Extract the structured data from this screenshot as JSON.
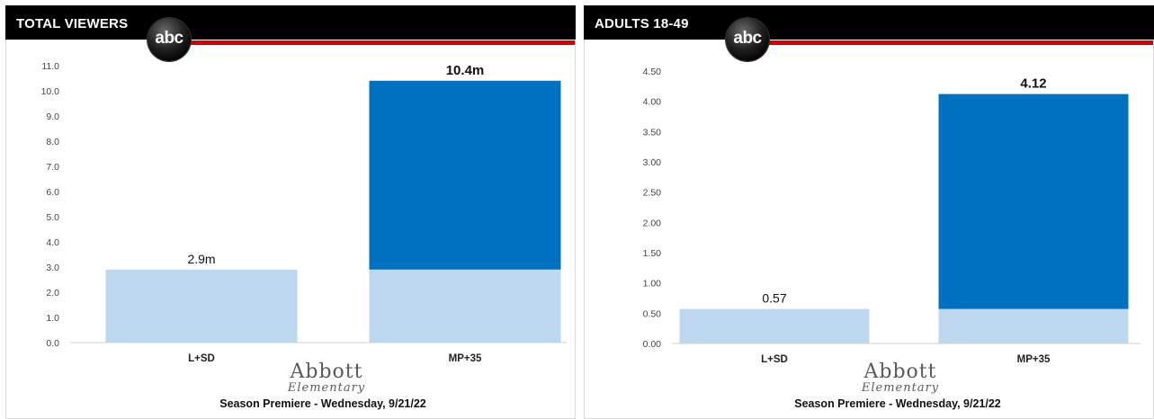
{
  "colors": {
    "light_bar": "#bdd7ee",
    "dark_bar": "#0070c0",
    "header": "#000000",
    "stripe": "#d40000"
  },
  "panels": [
    {
      "header_title": "TOTAL VIEWERS",
      "logo_text": "abc",
      "show_name_line1": "Abbott",
      "show_name_line2": "Elementary",
      "footer": "Season Premiere - Wednesday, 9/21/22"
    },
    {
      "header_title": "ADULTS 18-49",
      "logo_text": "abc",
      "show_name_line1": "Abbott",
      "show_name_line2": "Elementary",
      "footer": "Season Premiere - Wednesday, 9/21/22"
    }
  ],
  "chart_data": [
    {
      "type": "bar",
      "title": "TOTAL VIEWERS",
      "categories": [
        "L+SD",
        "MP+35"
      ],
      "series": [
        {
          "values": [
            2.9,
            2.9
          ]
        },
        {
          "values": [
            0,
            7.5
          ]
        }
      ],
      "totals": [
        2.9,
        10.4
      ],
      "data_labels": [
        "2.9m",
        "10.4m"
      ],
      "ylim": [
        0,
        11
      ],
      "yticks": [
        "0.0",
        "1.0",
        "2.0",
        "3.0",
        "4.0",
        "5.0",
        "6.0",
        "7.0",
        "8.0",
        "9.0",
        "10.0",
        "11.0"
      ],
      "grid": false,
      "legend": "none"
    },
    {
      "type": "bar",
      "title": "ADULTS 18-49",
      "categories": [
        "L+SD",
        "MP+35"
      ],
      "series": [
        {
          "values": [
            0.57,
            0.57
          ]
        },
        {
          "values": [
            0,
            3.55
          ]
        }
      ],
      "totals": [
        0.57,
        4.12
      ],
      "data_labels": [
        "0.57",
        "4.12"
      ],
      "ylim": [
        0,
        4.5
      ],
      "yticks": [
        "0.00",
        "0.50",
        "1.00",
        "1.50",
        "2.00",
        "2.50",
        "3.00",
        "3.50",
        "4.00",
        "4.50"
      ],
      "grid": false,
      "legend": "none"
    }
  ]
}
